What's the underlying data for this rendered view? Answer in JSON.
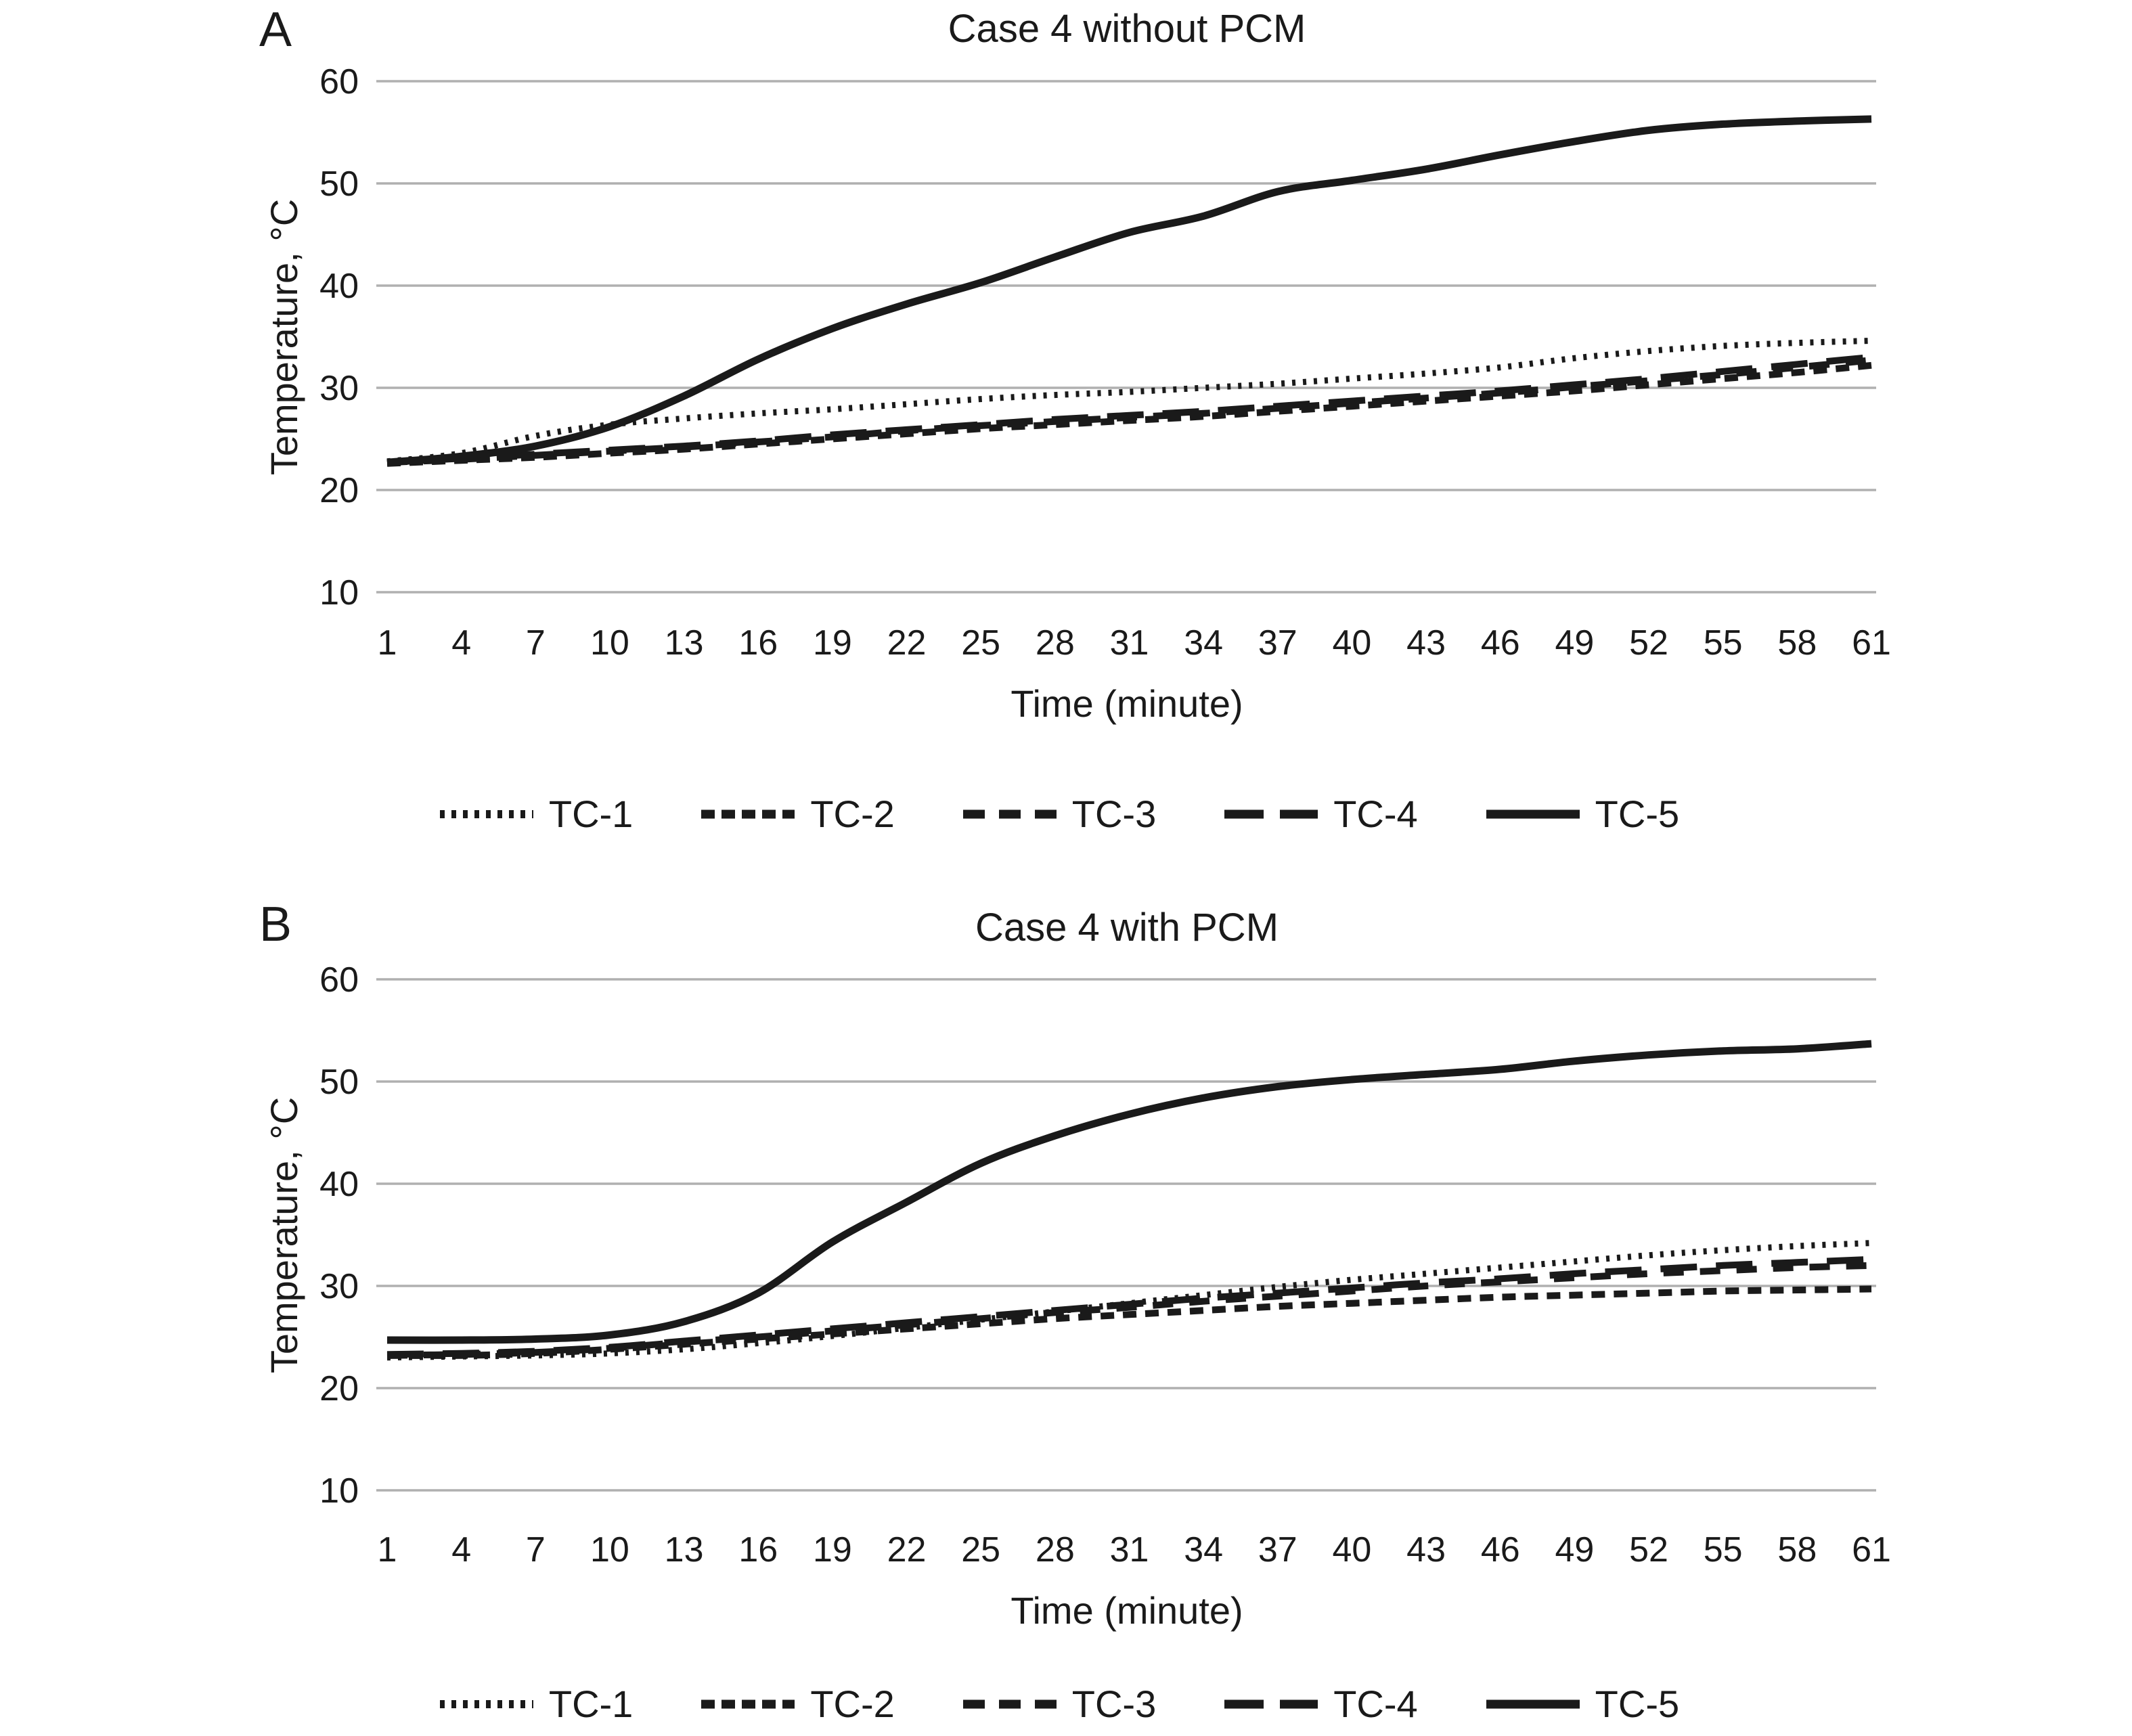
{
  "figure": {
    "panels": [
      {
        "label": "A"
      },
      {
        "label": "B"
      }
    ]
  },
  "styles": {
    "line_color": "#1a1a1a",
    "grid_color": "#b0b0b0",
    "background": "#ffffff"
  },
  "chart_data": [
    {
      "type": "line",
      "title": "Case 4 without PCM",
      "xlabel": "Time (minute)",
      "ylabel": "Temperature, °C",
      "xlim": [
        1,
        61
      ],
      "ylim": [
        10,
        60
      ],
      "grid": "horizontal",
      "legend_position": "bottom",
      "x_ticks": [
        1,
        4,
        7,
        10,
        13,
        16,
        19,
        22,
        25,
        28,
        31,
        34,
        37,
        40,
        43,
        46,
        49,
        52,
        55,
        58,
        61
      ],
      "y_ticks": [
        60,
        50,
        40,
        30,
        20,
        10
      ],
      "x": [
        1,
        4,
        7,
        10,
        13,
        16,
        19,
        22,
        25,
        28,
        31,
        34,
        37,
        40,
        43,
        46,
        49,
        52,
        55,
        58,
        61
      ],
      "series": [
        {
          "name": "TC-1",
          "style": "dotted",
          "values": [
            22.8,
            23.6,
            25.3,
            26.4,
            27.0,
            27.5,
            27.9,
            28.4,
            28.9,
            29.3,
            29.6,
            30.0,
            30.4,
            30.9,
            31.4,
            32.0,
            32.9,
            33.6,
            34.1,
            34.4,
            34.6
          ]
        },
        {
          "name": "TC-2",
          "style": "dash-fine",
          "values": [
            22.6,
            22.9,
            23.2,
            23.6,
            24.0,
            24.5,
            25.0,
            25.5,
            26.0,
            26.4,
            26.8,
            27.2,
            27.7,
            28.2,
            28.7,
            29.2,
            29.7,
            30.3,
            30.9,
            31.5,
            32.2
          ]
        },
        {
          "name": "TC-3",
          "style": "dash-medium",
          "values": [
            22.7,
            23.0,
            23.4,
            23.8,
            24.2,
            24.7,
            25.2,
            25.8,
            26.3,
            26.7,
            27.1,
            27.5,
            28.0,
            28.5,
            29.0,
            29.5,
            30.1,
            30.7,
            31.3,
            32.0,
            32.7
          ]
        },
        {
          "name": "TC-4",
          "style": "dash-long",
          "values": [
            22.7,
            23.1,
            23.5,
            23.9,
            24.3,
            24.8,
            25.4,
            25.9,
            26.4,
            26.9,
            27.3,
            27.7,
            28.2,
            28.7,
            29.2,
            29.7,
            30.3,
            30.9,
            31.6,
            32.3,
            33.0
          ]
        },
        {
          "name": "TC-5",
          "style": "solid",
          "values": [
            22.7,
            23.3,
            24.3,
            26.2,
            29.2,
            32.8,
            35.8,
            38.2,
            40.3,
            42.8,
            45.2,
            46.8,
            49.2,
            50.3,
            51.4,
            52.8,
            54.1,
            55.2,
            55.8,
            56.1,
            56.3
          ]
        }
      ]
    },
    {
      "type": "line",
      "title": "Case 4 with PCM",
      "xlabel": "Time (minute)",
      "ylabel": "Temperature, °C",
      "xlim": [
        1,
        61
      ],
      "ylim": [
        10,
        60
      ],
      "grid": "horizontal",
      "legend_position": "bottom",
      "x_ticks": [
        1,
        4,
        7,
        10,
        13,
        16,
        19,
        22,
        25,
        28,
        31,
        34,
        37,
        40,
        43,
        46,
        49,
        52,
        55,
        58,
        61
      ],
      "y_ticks": [
        60,
        50,
        40,
        30,
        20,
        10
      ],
      "x": [
        1,
        4,
        7,
        10,
        13,
        16,
        19,
        22,
        25,
        28,
        31,
        34,
        37,
        40,
        43,
        46,
        49,
        52,
        55,
        58,
        61
      ],
      "series": [
        {
          "name": "TC-1",
          "style": "dotted",
          "values": [
            23.0,
            23.1,
            23.2,
            23.4,
            23.8,
            24.4,
            25.1,
            25.9,
            26.7,
            27.5,
            28.3,
            29.1,
            29.9,
            30.6,
            31.2,
            31.8,
            32.4,
            33.0,
            33.5,
            33.9,
            34.2
          ]
        },
        {
          "name": "TC-2",
          "style": "dash-fine",
          "values": [
            23.2,
            23.2,
            23.4,
            23.8,
            24.3,
            24.8,
            25.3,
            25.8,
            26.3,
            26.8,
            27.2,
            27.6,
            28.0,
            28.3,
            28.6,
            28.9,
            29.1,
            29.3,
            29.5,
            29.6,
            29.7
          ]
        },
        {
          "name": "TC-3",
          "style": "dash-medium",
          "values": [
            23.2,
            23.3,
            23.5,
            23.9,
            24.5,
            25.0,
            25.6,
            26.2,
            26.8,
            27.4,
            27.9,
            28.5,
            29.0,
            29.5,
            30.0,
            30.4,
            30.8,
            31.2,
            31.5,
            31.8,
            32.0
          ]
        },
        {
          "name": "TC-4",
          "style": "dash-long",
          "values": [
            23.3,
            23.4,
            23.6,
            24.0,
            24.6,
            25.2,
            25.8,
            26.4,
            27.0,
            27.6,
            28.2,
            28.8,
            29.3,
            29.8,
            30.3,
            30.7,
            31.2,
            31.6,
            32.0,
            32.3,
            32.6
          ]
        },
        {
          "name": "TC-5",
          "style": "solid",
          "values": [
            24.7,
            24.7,
            24.8,
            25.2,
            26.5,
            29.3,
            34.3,
            38.2,
            42.0,
            44.7,
            46.8,
            48.4,
            49.5,
            50.2,
            50.7,
            51.2,
            52.0,
            52.6,
            53.0,
            53.2,
            53.7
          ]
        }
      ]
    }
  ]
}
